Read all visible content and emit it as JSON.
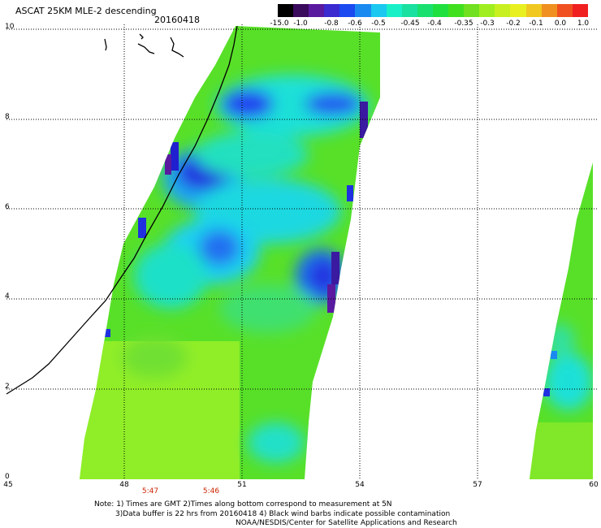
{
  "title": "ASCAT 25KM MLE-2 descending",
  "date": "20160418",
  "colorbar": {
    "labels": [
      "-15.0",
      "-1.0",
      "-0.8",
      "-0.6",
      "-0.5",
      "-0.45",
      "-0.4",
      "-0.35",
      "-0.3",
      "-0.2",
      "-0.1",
      "0.0",
      "1.0"
    ],
    "colors": [
      "#000000",
      "#3a0a5c",
      "#5a1aa0",
      "#3a2ad0",
      "#1a4af0",
      "#1a8af0",
      "#1ac8f0",
      "#1af0c8",
      "#1ae0a0",
      "#1ae070",
      "#20e040",
      "#40e020",
      "#70e020",
      "#a0ee20",
      "#c8f020",
      "#e8f020",
      "#f0c820",
      "#f09020",
      "#f05020",
      "#f02020"
    ]
  },
  "axes": {
    "y_ticks": [
      "0",
      "2",
      "4",
      "6",
      "8",
      "10"
    ],
    "x_ticks": [
      "45",
      "48",
      "51",
      "54",
      "57",
      "60"
    ]
  },
  "times": [
    "5:47",
    "5:46"
  ],
  "notes": [
    "Note: 1) Times are GMT 2)Times along bottom correspond to measurement at 5N",
    "3)Data buffer is 22 hrs from 20160418 4) Black wind barbs indicate possible contamination",
    "NOAA/NESDIS/Center for Satellite Applications and Research"
  ]
}
